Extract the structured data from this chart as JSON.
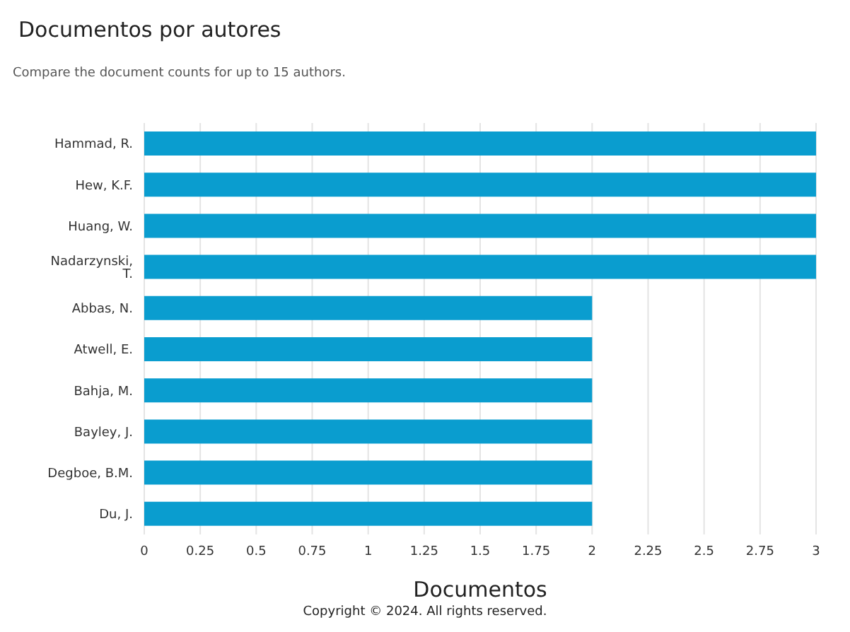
{
  "chart_data": {
    "type": "bar",
    "orientation": "horizontal",
    "title": "Documentos por autores",
    "subtitle": "Compare the document counts for up to 15 authors.",
    "xlabel": "Documentos",
    "categories": [
      "Hammad, R.",
      "Hew, K.F.",
      "Huang, W.",
      "Nadarzynski, T.",
      "Abbas, N.",
      "Atwell, E.",
      "Bahja, M.",
      "Bayley, J.",
      "Degboe, B.M.",
      "Du, J."
    ],
    "values": [
      3,
      3,
      3,
      3,
      2,
      2,
      2,
      2,
      2,
      2
    ],
    "color": "#0a9dcf",
    "xlim": [
      0,
      3
    ],
    "xticks": [
      0,
      0.25,
      0.5,
      0.75,
      1,
      1.25,
      1.5,
      1.75,
      2,
      2.25,
      2.5,
      2.75,
      3
    ],
    "grid": "x",
    "annotations": [
      "Copyright © 2024. All rights reserved."
    ]
  }
}
